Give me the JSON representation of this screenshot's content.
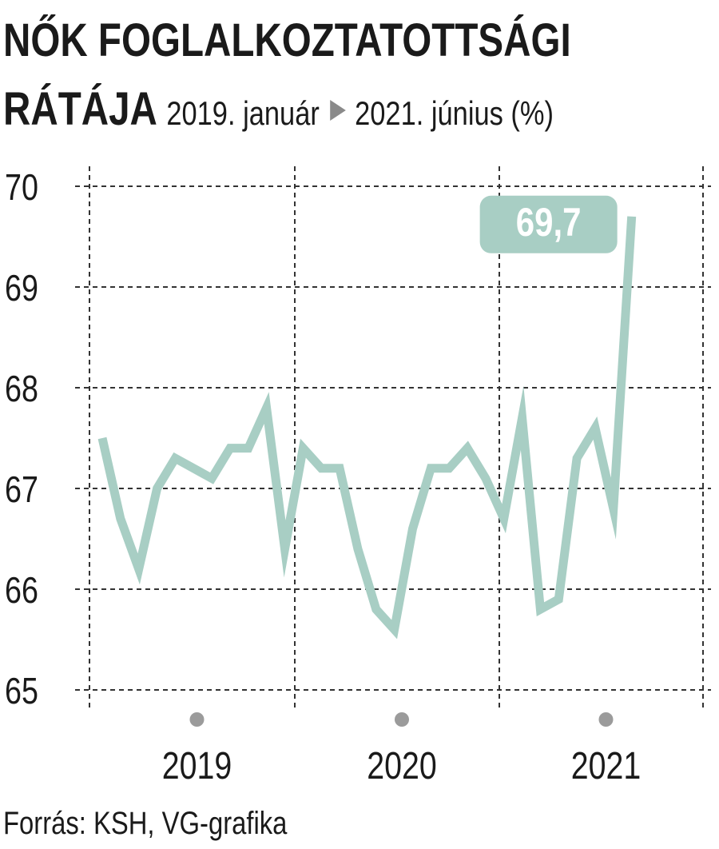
{
  "title": {
    "line1": "NŐK FOGLALKOZTATOTTSÁGI",
    "line2_bold": "RÁTÁJA",
    "period_start": "2019. január",
    "period_end": "2021. június (%)"
  },
  "source": "Forrás: KSH, VG-grafika",
  "colors": {
    "line": "#a8cec4",
    "grid": "#333333",
    "marker": "#9b9b9b",
    "text": "#1a1a1a"
  },
  "chart_data": {
    "type": "line",
    "title": "NŐK FOGLALKOZTATOTTSÁGI RÁTÁJA",
    "xlabel": "",
    "ylabel": "",
    "ylim": [
      65,
      70
    ],
    "yticks": [
      "70",
      "69",
      "68",
      "67",
      "66",
      "65"
    ],
    "year_labels": [
      "2019",
      "2020",
      "2021"
    ],
    "x": [
      "2019-01",
      "2019-02",
      "2019-03",
      "2019-04",
      "2019-05",
      "2019-06",
      "2019-07",
      "2019-08",
      "2019-09",
      "2019-10",
      "2019-11",
      "2019-12",
      "2020-01",
      "2020-02",
      "2020-03",
      "2020-04",
      "2020-05",
      "2020-06",
      "2020-07",
      "2020-08",
      "2020-09",
      "2020-10",
      "2020-11",
      "2020-12",
      "2021-01",
      "2021-02",
      "2021-03",
      "2021-04",
      "2021-05",
      "2021-06"
    ],
    "values": [
      67.5,
      66.7,
      66.2,
      67.0,
      67.3,
      67.2,
      67.1,
      67.4,
      67.4,
      67.8,
      66.4,
      67.4,
      67.2,
      67.2,
      66.4,
      65.8,
      65.6,
      66.6,
      67.2,
      67.2,
      67.4,
      67.1,
      66.7,
      67.7,
      65.8,
      65.9,
      67.3,
      67.6,
      66.8,
      69.7
    ],
    "callout": "69,7",
    "grid": true
  }
}
